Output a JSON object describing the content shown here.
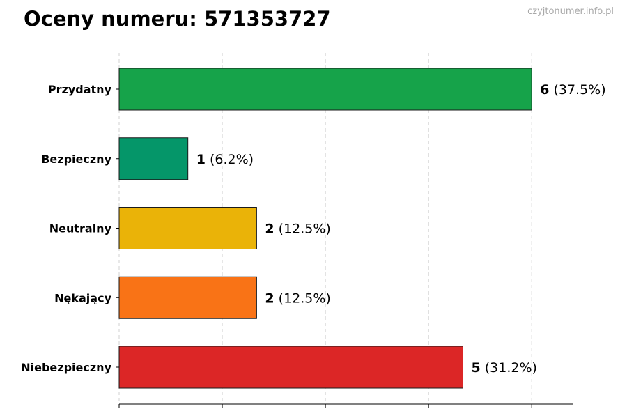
{
  "title": "Oceny numeru: 571353727",
  "watermark": "czyjtonumer.info.pl",
  "chart_data": {
    "type": "bar",
    "orientation": "horizontal",
    "categories": [
      "Przydatny",
      "Bezpieczny",
      "Neutralny",
      "Nękający",
      "Niebezpieczny"
    ],
    "values": [
      6,
      1,
      2,
      2,
      5
    ],
    "percent_labels": [
      "(37.5%)",
      "(6.2%)",
      "(12.5%)",
      "(12.5%)",
      "(31.2%)"
    ],
    "colors": [
      "#16a34a",
      "#059669",
      "#eab308",
      "#f97316",
      "#dc2626"
    ],
    "xlim": [
      0,
      6.6
    ],
    "x_gridlines": [
      0,
      1.5,
      3,
      4.5,
      6
    ],
    "grid": "vertical dashed",
    "xlabel": "",
    "ylabel": ""
  }
}
